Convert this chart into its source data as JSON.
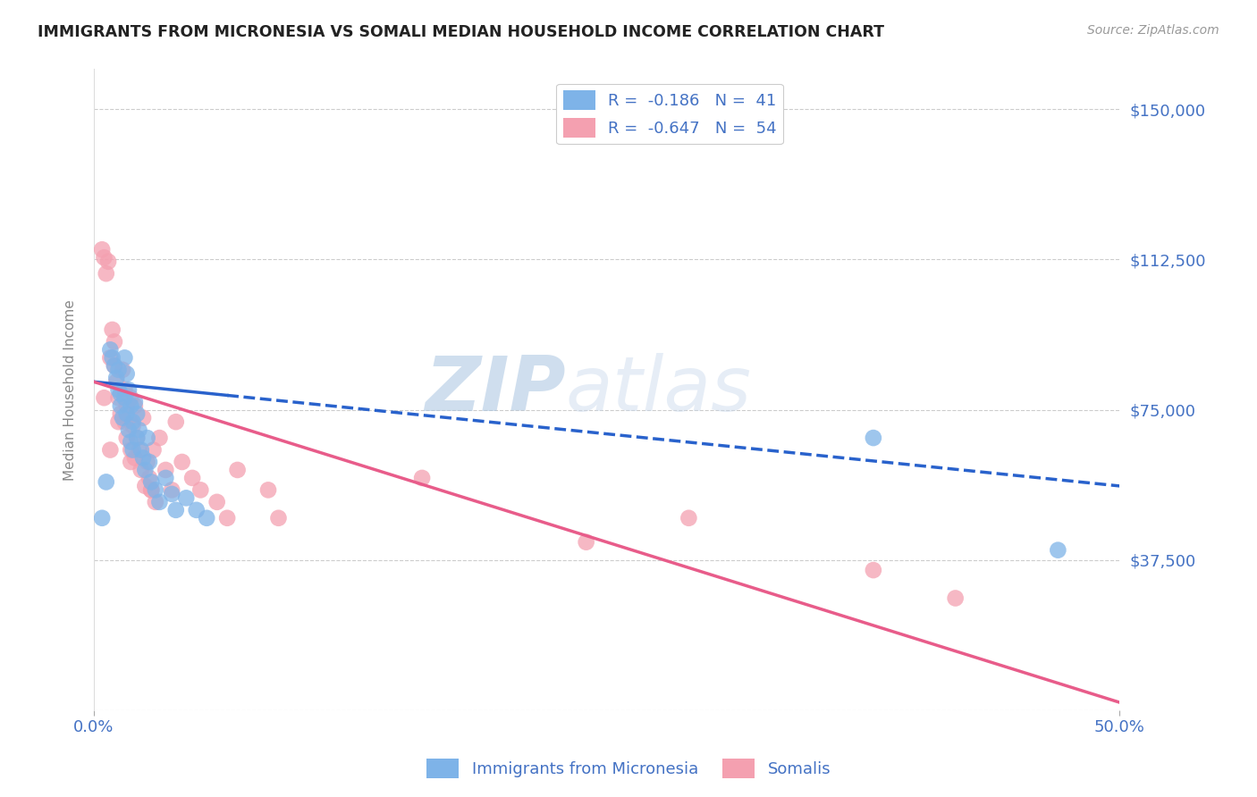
{
  "title": "IMMIGRANTS FROM MICRONESIA VS SOMALI MEDIAN HOUSEHOLD INCOME CORRELATION CHART",
  "source": "Source: ZipAtlas.com",
  "ylabel": "Median Household Income",
  "xlim": [
    0.0,
    0.5
  ],
  "ylim": [
    0,
    160000
  ],
  "yticks": [
    0,
    37500,
    75000,
    112500,
    150000
  ],
  "ytick_labels": [
    "",
    "$37,500",
    "$75,000",
    "$112,500",
    "$150,000"
  ],
  "xtick_labels": [
    "0.0%",
    "50.0%"
  ],
  "xticks": [
    0.0,
    0.5
  ],
  "blue_color": "#7EB3E8",
  "pink_color": "#F4A0B0",
  "blue_line_color": "#2962CC",
  "pink_line_color": "#E85C8A",
  "grid_color": "#CCCCCC",
  "title_color": "#222222",
  "axis_label_color": "#4472C4",
  "legend_label1": "R =  -0.186   N =  41",
  "legend_label2": "R =  -0.647   N =  54",
  "watermark_zip": "ZIP",
  "watermark_atlas": "atlas",
  "blue_line_x0": 0.0,
  "blue_line_y0": 82000,
  "blue_line_x1": 0.5,
  "blue_line_y1": 56000,
  "blue_line_solid_end": 0.065,
  "pink_line_x0": 0.0,
  "pink_line_y0": 82000,
  "pink_line_x1": 0.5,
  "pink_line_y1": 2000,
  "blue_scatter_x": [
    0.004,
    0.006,
    0.008,
    0.009,
    0.01,
    0.011,
    0.012,
    0.012,
    0.013,
    0.013,
    0.014,
    0.015,
    0.015,
    0.016,
    0.016,
    0.017,
    0.017,
    0.018,
    0.018,
    0.019,
    0.019,
    0.02,
    0.021,
    0.021,
    0.022,
    0.023,
    0.024,
    0.025,
    0.026,
    0.027,
    0.028,
    0.03,
    0.032,
    0.035,
    0.038,
    0.04,
    0.045,
    0.05,
    0.055,
    0.38,
    0.47
  ],
  "blue_scatter_y": [
    48000,
    57000,
    90000,
    88000,
    86000,
    83000,
    80000,
    85000,
    79000,
    76000,
    73000,
    88000,
    78000,
    84000,
    74000,
    80000,
    70000,
    76000,
    67000,
    72000,
    65000,
    77000,
    68000,
    74000,
    70000,
    65000,
    63000,
    60000,
    68000,
    62000,
    57000,
    55000,
    52000,
    58000,
    54000,
    50000,
    53000,
    50000,
    48000,
    68000,
    40000
  ],
  "pink_scatter_x": [
    0.004,
    0.005,
    0.006,
    0.007,
    0.008,
    0.009,
    0.01,
    0.01,
    0.011,
    0.012,
    0.013,
    0.014,
    0.015,
    0.015,
    0.016,
    0.016,
    0.017,
    0.018,
    0.018,
    0.019,
    0.02,
    0.02,
    0.021,
    0.022,
    0.023,
    0.024,
    0.025,
    0.026,
    0.027,
    0.028,
    0.029,
    0.03,
    0.032,
    0.035,
    0.038,
    0.04,
    0.043,
    0.048,
    0.052,
    0.06,
    0.065,
    0.07,
    0.085,
    0.09,
    0.005,
    0.008,
    0.012,
    0.018,
    0.028,
    0.16,
    0.24,
    0.29,
    0.38,
    0.42
  ],
  "pink_scatter_y": [
    115000,
    113000,
    109000,
    112000,
    88000,
    95000,
    86000,
    92000,
    82000,
    78000,
    74000,
    85000,
    80000,
    72000,
    76000,
    68000,
    73000,
    78000,
    65000,
    71000,
    76000,
    63000,
    68000,
    65000,
    60000,
    73000,
    56000,
    62000,
    58000,
    55000,
    65000,
    52000,
    68000,
    60000,
    55000,
    72000,
    62000,
    58000,
    55000,
    52000,
    48000,
    60000,
    55000,
    48000,
    78000,
    65000,
    72000,
    62000,
    55000,
    58000,
    42000,
    48000,
    35000,
    28000
  ]
}
